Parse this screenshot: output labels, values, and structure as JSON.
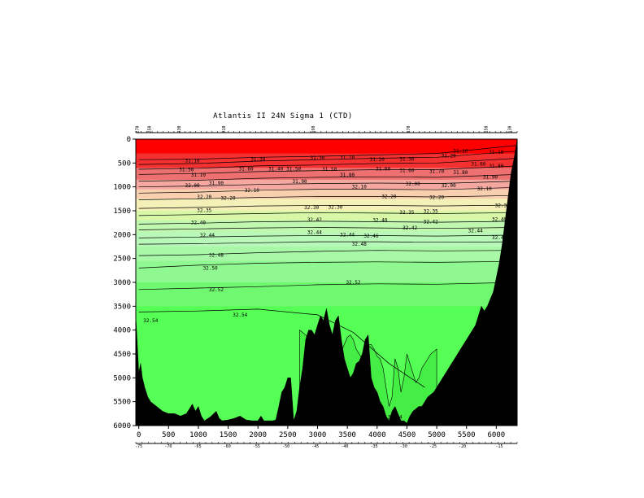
{
  "chart_data": {
    "type": "area",
    "title": "Atlantis II 24N Sigma 1 (CTD)",
    "xlabel": "",
    "ylabel": "",
    "xlim": [
      -50,
      6350
    ],
    "ylim": [
      0,
      6000
    ],
    "y_inverted": true,
    "x_ticks": [
      0,
      500,
      1000,
      1500,
      2000,
      2500,
      3000,
      3500,
      4000,
      4500,
      5000,
      5500,
      6000
    ],
    "y_ticks": [
      0,
      500,
      1000,
      1500,
      2000,
      2500,
      3000,
      3500,
      4000,
      4500,
      5000,
      5500,
      6000
    ],
    "longitude_ticks": {
      "labels": [
        "-75",
        "-70",
        "-65",
        "-60",
        "-55",
        "-50",
        "-45",
        "-40",
        "-35",
        "-30",
        "-25",
        "-20",
        "-15"
      ],
      "x": [
        0,
        494,
        988,
        1481,
        1975,
        2469,
        2963,
        3456,
        3950,
        4444,
        4938,
        5431,
        6050
      ]
    },
    "station_ticks": {
      "labels": [
        "270",
        "250",
        "230",
        "210",
        "190",
        "170",
        "150",
        "130"
      ],
      "x": [
        0,
        200,
        700,
        1450,
        2950,
        4550,
        5850,
        6250
      ]
    },
    "colors": {
      "land": "#000000",
      "contour_line": "#000000",
      "deep_green": "#55ff55",
      "bright_green": "#44ee44",
      "surface": "#ff0000"
    },
    "color_bands": [
      {
        "lower_depth": 300,
        "color": "#ff0000"
      },
      {
        "lower_depth": 600,
        "color": "#f53030"
      },
      {
        "lower_depth": 850,
        "color": "#ee7070"
      },
      {
        "lower_depth": 1050,
        "color": "#f5a8a0"
      },
      {
        "lower_depth": 1250,
        "color": "#f8d0b0"
      },
      {
        "lower_depth": 1500,
        "color": "#f4f0b8"
      },
      {
        "lower_depth": 1700,
        "color": "#d8f8a8"
      },
      {
        "lower_depth": 1950,
        "color": "#c0f8b0"
      },
      {
        "lower_depth": 2250,
        "color": "#b8f8b8"
      },
      {
        "lower_depth": 2550,
        "color": "#a8f8a8"
      },
      {
        "lower_depth": 3000,
        "color": "#90f890"
      },
      {
        "lower_depth": 3500,
        "color": "#70f870"
      },
      {
        "lower_depth": 6000,
        "color": "#55ff55"
      }
    ],
    "contours": [
      {
        "label": "31.10",
        "x": [
          0,
          1000,
          2000,
          3000,
          4000,
          5000,
          6350
        ],
        "depth": [
          430,
          420,
          380,
          360,
          330,
          300,
          130
        ]
      },
      {
        "label": "31.30",
        "x": [
          0,
          1000,
          2000,
          3000,
          4000,
          5000,
          6350
        ],
        "depth": [
          530,
          510,
          460,
          430,
          400,
          380,
          250
        ]
      },
      {
        "label": "31.50",
        "x": [
          0,
          1000,
          2000,
          3000,
          4000,
          5000,
          6350
        ],
        "depth": [
          630,
          610,
          560,
          540,
          510,
          500,
          400
        ]
      },
      {
        "label": "31.70",
        "x": [
          0,
          1000,
          2000,
          3000,
          4000,
          5000,
          6350
        ],
        "depth": [
          740,
          720,
          680,
          660,
          640,
          640,
          560
        ]
      },
      {
        "label": "31.90",
        "x": [
          0,
          1000,
          2000,
          3000,
          4000,
          5000,
          6350
        ],
        "depth": [
          880,
          860,
          820,
          800,
          790,
          800,
          740
        ]
      },
      {
        "label": "32.00",
        "x": [
          0,
          1000,
          2000,
          3000,
          4000,
          5000,
          6350
        ],
        "depth": [
          1000,
          980,
          950,
          930,
          920,
          930,
          880
        ]
      },
      {
        "label": "32.10",
        "x": [
          0,
          1000,
          2000,
          3000,
          4000,
          5000,
          6350
        ],
        "depth": [
          1130,
          1110,
          1070,
          1050,
          1050,
          1060,
          1010
        ]
      },
      {
        "label": "32.20",
        "x": [
          0,
          1000,
          2000,
          3000,
          4000,
          5000,
          6350
        ],
        "depth": [
          1270,
          1250,
          1220,
          1200,
          1200,
          1210,
          1180
        ]
      },
      {
        "label": "32.30",
        "x": [
          0,
          1000,
          2000,
          3000,
          4000,
          5000,
          6350
        ],
        "depth": [
          1450,
          1430,
          1400,
          1390,
          1390,
          1400,
          1380
        ]
      },
      {
        "label": "32.35",
        "x": [
          0,
          1000,
          2000,
          3000,
          4000,
          5000,
          6350
        ],
        "depth": [
          1600,
          1580,
          1560,
          1540,
          1550,
          1560,
          1540
        ]
      },
      {
        "label": "32.40",
        "x": [
          0,
          1000,
          2000,
          3000,
          4000,
          5000,
          6350
        ],
        "depth": [
          1780,
          1760,
          1730,
          1720,
          1730,
          1740,
          1720
        ]
      },
      {
        "label": "32.42",
        "x": [
          0,
          1000,
          2000,
          3000,
          4000,
          5000,
          6350
        ],
        "depth": [
          1900,
          1880,
          1860,
          1850,
          1860,
          1870,
          1850
        ]
      },
      {
        "label": "32.44",
        "x": [
          0,
          1000,
          2000,
          3000,
          4000,
          5000,
          6350
        ],
        "depth": [
          2070,
          2050,
          2030,
          2020,
          2020,
          2030,
          2010
        ]
      },
      {
        "label": "32.46",
        "x": [
          0,
          1000,
          2000,
          3000,
          4000,
          5000,
          6350
        ],
        "depth": [
          2200,
          2190,
          2170,
          2150,
          2150,
          2160,
          2150
        ]
      },
      {
        "label": "32.48",
        "x": [
          0,
          1000,
          2000,
          3000,
          4000,
          5000,
          6350
        ],
        "depth": [
          2440,
          2420,
          2380,
          2350,
          2330,
          2340,
          2330
        ]
      },
      {
        "label": "32.50",
        "x": [
          0,
          1000,
          2000,
          3000,
          4000,
          5000,
          6350
        ],
        "depth": [
          2700,
          2640,
          2600,
          2580,
          2570,
          2580,
          2560
        ]
      },
      {
        "label": "32.52",
        "x": [
          0,
          1000,
          2000,
          3000,
          4000,
          5000,
          6350
        ],
        "depth": [
          3150,
          3120,
          3090,
          3050,
          3030,
          3040,
          3000
        ]
      },
      {
        "label": "32.54",
        "x": [
          0,
          1000,
          2000,
          3000,
          3600,
          4200,
          4800
        ],
        "depth": [
          3620,
          3600,
          3560,
          3680,
          4050,
          4700,
          5200
        ]
      }
    ],
    "contour_labels": [
      {
        "text": "31.10",
        "x": 900,
        "depth": 450
      },
      {
        "text": "31.30",
        "x": 2000,
        "depth": 420
      },
      {
        "text": "31.30",
        "x": 3000,
        "depth": 390
      },
      {
        "text": "31.10",
        "x": 3500,
        "depth": 380
      },
      {
        "text": "31.20",
        "x": 4000,
        "depth": 430
      },
      {
        "text": "31.30",
        "x": 4500,
        "depth": 420
      },
      {
        "text": "31.20",
        "x": 5200,
        "depth": 350
      },
      {
        "text": "31.10",
        "x": 5400,
        "depth": 250
      },
      {
        "text": "31.10",
        "x": 6000,
        "depth": 270
      },
      {
        "text": "31.50",
        "x": 800,
        "depth": 640
      },
      {
        "text": "31.60",
        "x": 1800,
        "depth": 620
      },
      {
        "text": "31.50",
        "x": 2600,
        "depth": 620
      },
      {
        "text": "31.50",
        "x": 3200,
        "depth": 630
      },
      {
        "text": "31.60",
        "x": 4100,
        "depth": 620
      },
      {
        "text": "31.60",
        "x": 4500,
        "depth": 660
      },
      {
        "text": "31.70",
        "x": 5000,
        "depth": 670
      },
      {
        "text": "31.80",
        "x": 5400,
        "depth": 700
      },
      {
        "text": "31.60",
        "x": 5700,
        "depth": 520
      },
      {
        "text": "31.80",
        "x": 6000,
        "depth": 560
      },
      {
        "text": "31.10",
        "x": 1000,
        "depth": 750
      },
      {
        "text": "31.40",
        "x": 2300,
        "depth": 620
      },
      {
        "text": "31.80",
        "x": 3500,
        "depth": 750
      },
      {
        "text": "31.90",
        "x": 5900,
        "depth": 790
      },
      {
        "text": "31.90",
        "x": 1300,
        "depth": 920
      },
      {
        "text": "32.00",
        "x": 900,
        "depth": 970
      },
      {
        "text": "31.90",
        "x": 2700,
        "depth": 890
      },
      {
        "text": "32.10",
        "x": 3700,
        "depth": 1000
      },
      {
        "text": "32.00",
        "x": 4600,
        "depth": 940
      },
      {
        "text": "32.00",
        "x": 5200,
        "depth": 970
      },
      {
        "text": "32.10",
        "x": 1900,
        "depth": 1070
      },
      {
        "text": "32.10",
        "x": 5800,
        "depth": 1040
      },
      {
        "text": "32.20",
        "x": 1100,
        "depth": 1210
      },
      {
        "text": "32.20",
        "x": 1500,
        "depth": 1240
      },
      {
        "text": "32.20",
        "x": 4200,
        "depth": 1200
      },
      {
        "text": "32.20",
        "x": 5000,
        "depth": 1220
      },
      {
        "text": "32.30",
        "x": 2900,
        "depth": 1430
      },
      {
        "text": "32.30",
        "x": 3300,
        "depth": 1420
      },
      {
        "text": "32.30",
        "x": 6100,
        "depth": 1390
      },
      {
        "text": "32.35",
        "x": 1100,
        "depth": 1490
      },
      {
        "text": "32.35",
        "x": 4500,
        "depth": 1530
      },
      {
        "text": "32.35",
        "x": 4900,
        "depth": 1510
      },
      {
        "text": "32.40",
        "x": 1000,
        "depth": 1750
      },
      {
        "text": "32.42",
        "x": 2950,
        "depth": 1690
      },
      {
        "text": "32.40",
        "x": 4050,
        "depth": 1700
      },
      {
        "text": "32.42",
        "x": 4900,
        "depth": 1730
      },
      {
        "text": "32.40",
        "x": 6050,
        "depth": 1680
      },
      {
        "text": "32.44",
        "x": 1150,
        "depth": 2010
      },
      {
        "text": "32.44",
        "x": 2950,
        "depth": 1950
      },
      {
        "text": "32.42",
        "x": 4550,
        "depth": 1860
      },
      {
        "text": "32.44",
        "x": 5650,
        "depth": 1920
      },
      {
        "text": "32.44",
        "x": 3500,
        "depth": 2000
      },
      {
        "text": "32.46",
        "x": 3900,
        "depth": 2030
      },
      {
        "text": "32.46",
        "x": 6050,
        "depth": 2060
      },
      {
        "text": "32.48",
        "x": 3700,
        "depth": 2200
      },
      {
        "text": "32.48",
        "x": 1300,
        "depth": 2430
      },
      {
        "text": "32.4",
        "x": 6250,
        "depth": 2270
      },
      {
        "text": "32.50",
        "x": 1200,
        "depth": 2700
      },
      {
        "text": "32.5",
        "x": 6250,
        "depth": 2600
      },
      {
        "text": "32.52",
        "x": 1300,
        "depth": 3150
      },
      {
        "text": "32.52",
        "x": 3600,
        "depth": 3000
      },
      {
        "text": "32.54",
        "x": 1700,
        "depth": 3680
      },
      {
        "text": "32.54",
        "x": 200,
        "depth": 3800
      },
      {
        "text": "32.54",
        "x": 4300,
        "depth": 5820
      }
    ],
    "bathymetry": {
      "x": [
        -50,
        0,
        30,
        60,
        100,
        150,
        200,
        300,
        400,
        500,
        600,
        700,
        800,
        900,
        950,
        1000,
        1050,
        1100,
        1200,
        1300,
        1350,
        1400,
        1500,
        1600,
        1700,
        1800,
        1900,
        2000,
        2050,
        2100,
        2150,
        2200,
        2250,
        2300,
        2350,
        2400,
        2450,
        2500,
        2550,
        2600,
        2650,
        2700,
        2750,
        2800,
        2850,
        2900,
        2950,
        3000,
        3050,
        3100,
        3150,
        3200,
        3250,
        3300,
        3350,
        3400,
        3450,
        3500,
        3550,
        3600,
        3650,
        3700,
        3750,
        3800,
        3850,
        3900,
        3950,
        4000,
        4050,
        4100,
        4150,
        4200,
        4250,
        4300,
        4350,
        4400,
        4450,
        4500,
        4550,
        4600,
        4650,
        4700,
        4750,
        4800,
        4850,
        4900,
        4950,
        5000,
        5050,
        5100,
        5150,
        5200,
        5250,
        5300,
        5350,
        5400,
        5450,
        5500,
        5550,
        5600,
        5650,
        5700,
        5750,
        5800,
        5850,
        5900,
        5950,
        6000,
        6050,
        6100,
        6150,
        6200,
        6250,
        6300,
        6350
      ],
      "depth": [
        3700,
        4900,
        4700,
        5000,
        5200,
        5400,
        5500,
        5600,
        5700,
        5750,
        5750,
        5800,
        5750,
        5550,
        5700,
        5600,
        5800,
        5900,
        5820,
        5700,
        5850,
        5900,
        5880,
        5850,
        5800,
        5880,
        5900,
        5900,
        5800,
        5900,
        5900,
        5900,
        5900,
        5880,
        5600,
        5300,
        5200,
        5000,
        5000,
        5900,
        5700,
        5200,
        4800,
        4200,
        4000,
        4000,
        4100,
        3900,
        3700,
        3800,
        3550,
        3900,
        4100,
        3800,
        3700,
        4200,
        4600,
        4800,
        5000,
        4900,
        4700,
        4650,
        4500,
        4200,
        4100,
        5000,
        5200,
        5300,
        5500,
        5600,
        5800,
        5900,
        5700,
        5600,
        5750,
        5900,
        5900,
        5950,
        5800,
        5700,
        5650,
        5600,
        5600,
        5500,
        5400,
        5350,
        5300,
        5200,
        5100,
        5000,
        4900,
        4800,
        4700,
        4600,
        4500,
        4400,
        4300,
        4200,
        4100,
        4000,
        3900,
        3700,
        3500,
        3600,
        3500,
        3350,
        3200,
        2900,
        2600,
        2200,
        1700,
        1200,
        700,
        400,
        0
      ]
    },
    "green_region": {
      "x": [
        2700,
        2750,
        2800,
        2850,
        2900,
        2950,
        3000,
        3050,
        3100,
        3150,
        3200,
        3250,
        3300,
        3350,
        3400,
        3450,
        3500,
        3550,
        3600,
        3650,
        3700,
        3750,
        3800,
        3850,
        3900,
        3950,
        4000,
        4050,
        4100,
        4150,
        4200,
        4250,
        4300,
        4350,
        4400,
        4450,
        4500,
        4550,
        4600,
        4650,
        4700,
        4750,
        4800,
        4850,
        4900,
        4950,
        5000
      ],
      "depth": [
        4000,
        4050,
        4100,
        4200,
        4400,
        4700,
        5000,
        5100,
        5050,
        4900,
        4850,
        4800,
        4700,
        4600,
        4450,
        4300,
        4150,
        4100,
        4200,
        4400,
        4500,
        4600,
        4400,
        4300,
        4300,
        4400,
        4550,
        4600,
        4800,
        5200,
        5600,
        5400,
        4600,
        4800,
        5300,
        5000,
        4500,
        4700,
        4900,
        5100,
        5000,
        4800,
        4700,
        4600,
        4500,
        4450,
        4400
      ]
    }
  }
}
